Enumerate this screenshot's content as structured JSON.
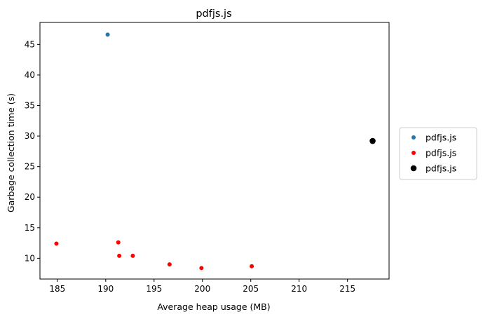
{
  "chart_data": {
    "type": "scatter",
    "title": "pdfjs.js",
    "xlabel": "Average heap usage (MB)",
    "ylabel": "Garbage collection time (s)",
    "xlim": [
      183.2,
      219.3
    ],
    "ylim": [
      6.6,
      48.6
    ],
    "x_ticks": [
      185,
      190,
      195,
      200,
      205,
      210,
      215
    ],
    "y_ticks": [
      10,
      15,
      20,
      25,
      30,
      35,
      40,
      45
    ],
    "grid": false,
    "legend_position": "outside-right",
    "series": [
      {
        "name": "pdfjs.js",
        "color": "#1f77b4",
        "marker_size": "small",
        "points": [
          {
            "x": 190.2,
            "y": 46.6
          }
        ]
      },
      {
        "name": "pdfjs.js",
        "color": "#ff0000",
        "marker_size": "small",
        "points": [
          {
            "x": 184.9,
            "y": 12.4
          },
          {
            "x": 191.3,
            "y": 12.6
          },
          {
            "x": 191.4,
            "y": 10.4
          },
          {
            "x": 192.8,
            "y": 10.4
          },
          {
            "x": 196.6,
            "y": 9.0
          },
          {
            "x": 199.9,
            "y": 8.4
          },
          {
            "x": 205.1,
            "y": 8.7
          }
        ]
      },
      {
        "name": "pdfjs.js",
        "color": "#000000",
        "marker_size": "large",
        "points": [
          {
            "x": 217.6,
            "y": 29.2
          }
        ]
      }
    ]
  }
}
